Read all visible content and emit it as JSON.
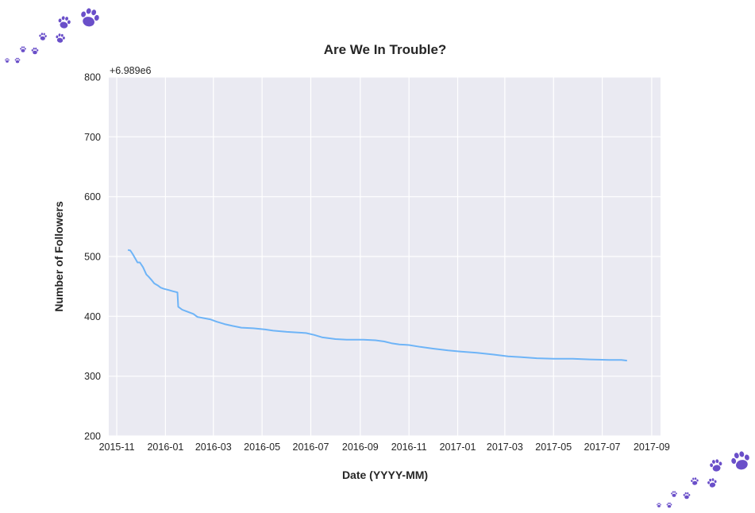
{
  "chart_data": {
    "type": "line",
    "title": "Are We In Trouble?",
    "xlabel": "Date (YYYY-MM)",
    "ylabel": "Number of Followers",
    "y_offset_label": "+6.989e6",
    "y_offset": 6989000,
    "ylim": [
      200,
      800
    ],
    "yticks": [
      200,
      300,
      400,
      500,
      600,
      700,
      800
    ],
    "xlim": [
      "2015-10-22",
      "2017-09-12"
    ],
    "xticks": [
      "2015-11",
      "2016-01",
      "2016-03",
      "2016-05",
      "2016-07",
      "2016-09",
      "2016-11",
      "2017-01",
      "2017-03",
      "2017-05",
      "2017-07",
      "2017-09"
    ],
    "grid": true,
    "line_color": "#6eb4f7",
    "background_color": "#eaeaf2",
    "series": [
      {
        "x": [
          "2015-11-15",
          "2015-11-18",
          "2015-11-21",
          "2015-11-24",
          "2015-11-27",
          "2015-11-30",
          "2015-12-04",
          "2015-12-08",
          "2015-12-11",
          "2015-12-15",
          "2015-12-18",
          "2015-12-22",
          "2015-12-26",
          "2015-12-30",
          "2016-01-05",
          "2016-01-10",
          "2016-01-16",
          "2016-01-17",
          "2016-01-22",
          "2016-01-28",
          "2016-02-05",
          "2016-02-10",
          "2016-02-18",
          "2016-02-26",
          "2016-03-05",
          "2016-03-15",
          "2016-03-25",
          "2016-04-05",
          "2016-04-20",
          "2016-05-05",
          "2016-05-15",
          "2016-06-01",
          "2016-06-15",
          "2016-06-25",
          "2016-07-05",
          "2016-07-15",
          "2016-08-01",
          "2016-08-15",
          "2016-08-25",
          "2016-09-05",
          "2016-09-20",
          "2016-10-01",
          "2016-10-10",
          "2016-10-20",
          "2016-11-01",
          "2016-11-15",
          "2016-12-01",
          "2016-12-20",
          "2017-01-05",
          "2017-01-25",
          "2017-02-15",
          "2017-03-05",
          "2017-03-20",
          "2017-04-10",
          "2017-05-01",
          "2017-05-25",
          "2017-06-15",
          "2017-07-10",
          "2017-07-25",
          "2017-08-01"
        ],
        "values": [
          511,
          510,
          504,
          497,
          490,
          490,
          482,
          470,
          466,
          460,
          455,
          452,
          448,
          446,
          444,
          442,
          440,
          416,
          411,
          408,
          404,
          399,
          397,
          395,
          391,
          387,
          384,
          381,
          380,
          378,
          376,
          374,
          373,
          372,
          369,
          365,
          362,
          361,
          361,
          361,
          360,
          358,
          355,
          353,
          352,
          349,
          346,
          343,
          341,
          339,
          336,
          333,
          332,
          330,
          329,
          329,
          328,
          327,
          327,
          326
        ]
      }
    ]
  },
  "decorations": {
    "paw_icon_color": "#6a4fc9"
  }
}
